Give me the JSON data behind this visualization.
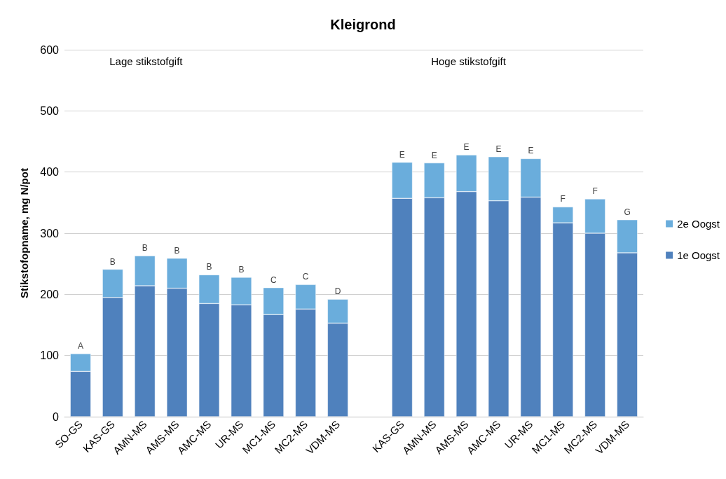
{
  "chart_data": {
    "type": "bar",
    "title": "Kleigrond",
    "ylabel": "Stikstofopname, mg N/pot",
    "stacked": true,
    "categories": [
      "SO-GS",
      "KAS-GS",
      "AMN-MS",
      "AMS-MS",
      "AMC-MS",
      "UR-MS",
      "MC1-MS",
      "MC2-MS",
      "VDM-MS",
      null,
      "KAS-GS",
      "AMN-MS",
      "AMS-MS",
      "AMC-MS",
      "UR-MS",
      "MC1-MS",
      "MC2-MS",
      "VDM-MS"
    ],
    "series": [
      {
        "name": "1e Oogst",
        "color": "#4f81bd",
        "values": [
          74,
          195,
          214,
          210,
          185,
          183,
          167,
          176,
          153,
          null,
          357,
          358,
          368,
          353,
          359,
          317,
          300,
          268
        ]
      },
      {
        "name": "2e Oogst",
        "color": "#6aaddc",
        "values": [
          29,
          46,
          49,
          49,
          47,
          45,
          44,
          40,
          39,
          null,
          59,
          57,
          60,
          72,
          63,
          26,
          56,
          54
        ],
        "value_labels": [
          "A",
          "B",
          "B",
          "B",
          "B",
          "B",
          "C",
          "C",
          "D",
          null,
          "E",
          "E",
          "E",
          "E",
          "E",
          "F",
          "F",
          "G"
        ]
      }
    ],
    "ylim": [
      0,
      600
    ],
    "yticks": [
      0,
      100,
      200,
      300,
      400,
      500,
      600
    ],
    "grid": "y",
    "legend": "right",
    "annotations": [
      "Lage stikstofgift",
      "Hoge stikstofgift"
    ]
  }
}
